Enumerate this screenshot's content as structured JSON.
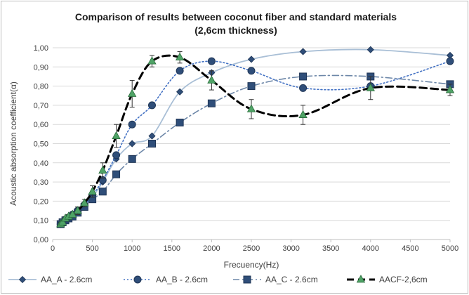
{
  "chart_data": {
    "type": "line",
    "title_line1": "Comparison of results between coconut fiber and standard materials",
    "title_line2": "(2,6cm thickness)",
    "xlabel": "Frecuency(Hz)",
    "ylabel": "Acoustic absorption coefficient(α)",
    "xlim": [
      0,
      5000
    ],
    "ylim": [
      0,
      1.0
    ],
    "xticks": [
      0,
      500,
      1000,
      1500,
      2000,
      2500,
      3000,
      3500,
      4000,
      4500,
      5000
    ],
    "yticks": [
      "0,00",
      "0,10",
      "0,20",
      "0,30",
      "0,40",
      "0,50",
      "0,60",
      "0,70",
      "0,80",
      "0,90",
      "1,00"
    ],
    "grid": "horizontal",
    "legend_position": "bottom",
    "series": [
      {
        "name": "AA_A - 2.6cm",
        "color": "#a9bfd6",
        "line": "solid",
        "marker": "diamond",
        "marker_color": "#2f4e79",
        "x": [
          100,
          125,
          160,
          200,
          250,
          315,
          400,
          500,
          630,
          800,
          1000,
          1250,
          1600,
          2000,
          2500,
          3150,
          4000,
          5000
        ],
        "y": [
          0.08,
          0.09,
          0.1,
          0.11,
          0.12,
          0.14,
          0.17,
          0.22,
          0.3,
          0.42,
          0.5,
          0.54,
          0.77,
          0.87,
          0.94,
          0.98,
          0.99,
          0.96
        ]
      },
      {
        "name": "AA_B - 2.6cm",
        "color": "#4472c4",
        "line": "dotted",
        "marker": "circle",
        "marker_color": "#2f4e79",
        "x": [
          100,
          125,
          160,
          200,
          250,
          315,
          400,
          500,
          630,
          800,
          1000,
          1250,
          1600,
          2000,
          2500,
          3150,
          4000,
          5000
        ],
        "y": [
          0.08,
          0.09,
          0.1,
          0.11,
          0.13,
          0.15,
          0.18,
          0.23,
          0.31,
          0.44,
          0.6,
          0.7,
          0.88,
          0.93,
          0.88,
          0.79,
          0.8,
          0.93
        ]
      },
      {
        "name": "AA_C - 2.6cm",
        "color": "#6d87a8",
        "line": "dashdot",
        "marker": "square",
        "marker_color": "#2f4e79",
        "x": [
          100,
          125,
          160,
          200,
          250,
          315,
          400,
          500,
          630,
          800,
          1000,
          1250,
          1600,
          2000,
          2500,
          3150,
          4000,
          5000
        ],
        "y": [
          0.08,
          0.09,
          0.1,
          0.11,
          0.12,
          0.14,
          0.17,
          0.21,
          0.25,
          0.34,
          0.42,
          0.5,
          0.61,
          0.71,
          0.8,
          0.85,
          0.85,
          0.81
        ]
      },
      {
        "name": "AACF-2,6cm",
        "color": "#000000",
        "line": "dashed",
        "marker": "triangle",
        "marker_color": "#4fa366",
        "x": [
          100,
          125,
          160,
          200,
          250,
          315,
          400,
          500,
          630,
          800,
          1000,
          1250,
          1600,
          2000,
          2500,
          3150,
          4000,
          5000
        ],
        "y": [
          0.08,
          0.09,
          0.11,
          0.12,
          0.13,
          0.15,
          0.19,
          0.25,
          0.36,
          0.54,
          0.76,
          0.93,
          0.95,
          0.83,
          0.68,
          0.65,
          0.79,
          0.78
        ],
        "error": [
          0.01,
          0.01,
          0.01,
          0.01,
          0.01,
          0.02,
          0.02,
          0.03,
          0.04,
          0.06,
          0.07,
          0.03,
          0.03,
          0.05,
          0.05,
          0.05,
          0.06,
          0.03
        ]
      }
    ]
  }
}
